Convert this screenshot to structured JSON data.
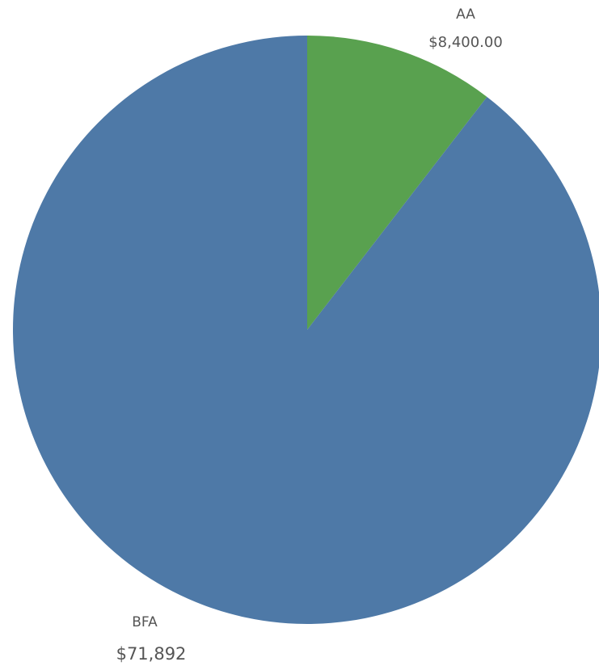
{
  "chart_data": {
    "type": "pie",
    "title": "",
    "slices": [
      {
        "label": "AA",
        "value": 8400.0,
        "value_label": "$8,400.00",
        "color": "#59a14f"
      },
      {
        "label": "BFA",
        "value": 71892,
        "value_label": "$71,892",
        "color": "#4e79a7"
      }
    ],
    "start_angle_deg": 0,
    "direction": "clockwise",
    "legend": "none"
  }
}
